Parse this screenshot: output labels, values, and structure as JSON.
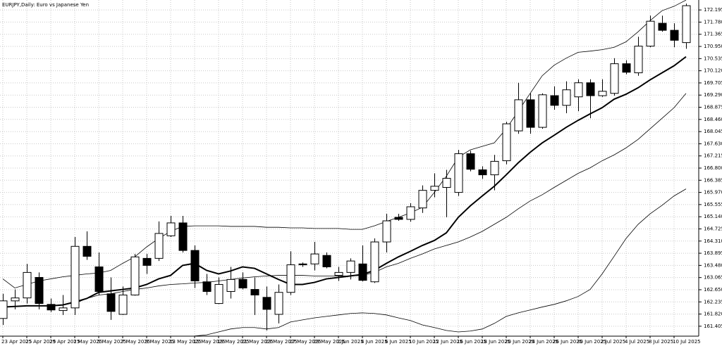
{
  "chart_data": {
    "type": "candlestick",
    "title": "EURJPY,Daily: Euro vs Japanese Yen",
    "categories": [
      "23 Apr 2025",
      null,
      "25 Apr 2025",
      null,
      "29 Apr 2025",
      null,
      "1 May 2025",
      null,
      "5 May 2025",
      null,
      "7 May 2025",
      null,
      "9 May 2025",
      null,
      "13 May 2025",
      null,
      "15 May 2025",
      null,
      "19 May 2025",
      null,
      "21 May 2025",
      null,
      "23 May 2025",
      null,
      "27 May 2025",
      null,
      "29 May 2025",
      null,
      "2 Jun 2025",
      null,
      "4 Jun 2025",
      null,
      "6 Jun 2025",
      null,
      "10 Jun 2025",
      null,
      "12 Jun 2025",
      null,
      "16 Jun 2025",
      null,
      "18 Jun 2025",
      null,
      "20 Jun 2025",
      null,
      "24 Jun 2025",
      null,
      "26 Jun 2025",
      null,
      "30 Jun 2025",
      null,
      "2 Jul 2025",
      null,
      "4 Jul 2025",
      null,
      "8 Jul 2025",
      null,
      "10 Jul 2025",
      null
    ],
    "open": [
      161.67,
      162.27,
      162.37,
      163.07,
      162.15,
      161.94,
      162.03,
      164.13,
      163.43,
      162.51,
      161.81,
      162.47,
      163.72,
      163.72,
      164.49,
      164.93,
      163.99,
      162.92,
      162.18,
      162.59,
      163.0,
      162.66,
      162.39,
      161.81,
      162.56,
      163.53,
      163.53,
      163.82,
      163.14,
      163.24,
      163.53,
      162.92,
      164.28,
      165.12,
      165.05,
      165.44,
      166.04,
      166.14,
      165.97,
      167.29,
      166.74,
      166.57,
      167.05,
      168.07,
      169.13,
      168.19,
      169.27,
      168.94,
      169.23,
      169.71,
      169.27,
      169.35,
      170.36,
      170.05,
      170.96,
      171.74,
      171.5,
      171.08
    ],
    "high": [
      162.51,
      162.66,
      163.53,
      163.24,
      162.35,
      162.47,
      164.45,
      164.64,
      163.92,
      163.07,
      162.76,
      163.87,
      163.87,
      164.98,
      165.17,
      165.17,
      164.16,
      163.19,
      163.07,
      163.43,
      163.24,
      163.07,
      162.76,
      162.83,
      163.96,
      163.58,
      164.28,
      163.92,
      163.43,
      163.72,
      164.16,
      164.4,
      165.24,
      165.24,
      165.6,
      166.21,
      166.62,
      166.74,
      167.42,
      167.39,
      166.86,
      167.25,
      168.38,
      169.71,
      169.35,
      169.35,
      169.59,
      169.76,
      169.83,
      169.83,
      169.83,
      170.55,
      170.48,
      171.28,
      172.0,
      172.0,
      171.74,
      172.41
    ],
    "low": [
      161.45,
      161.98,
      162.18,
      161.98,
      161.89,
      161.79,
      161.79,
      163.67,
      162.47,
      161.62,
      161.79,
      162.45,
      163.19,
      163.63,
      164.45,
      163.92,
      162.71,
      162.47,
      162.16,
      162.35,
      162.66,
      161.79,
      161.26,
      161.5,
      162.47,
      163.43,
      163.31,
      163.38,
      162.95,
      163.0,
      162.93,
      162.88,
      163.92,
      165.0,
      164.97,
      165.27,
      165.8,
      165.12,
      165.85,
      166.69,
      166.43,
      166.04,
      166.93,
      167.97,
      167.97,
      168.14,
      168.79,
      168.67,
      168.74,
      168.5,
      169.23,
      169.27,
      170.0,
      169.95,
      170.92,
      171.45,
      170.92,
      170.87
    ],
    "close": [
      162.27,
      162.37,
      163.24,
      162.18,
      161.96,
      162.03,
      164.13,
      163.79,
      162.59,
      161.91,
      162.47,
      163.77,
      163.48,
      164.57,
      164.93,
      163.99,
      162.95,
      162.59,
      162.83,
      163.0,
      162.71,
      162.47,
      161.98,
      162.56,
      163.5,
      163.5,
      163.87,
      163.43,
      163.24,
      163.63,
      162.97,
      164.28,
      165.0,
      165.05,
      165.48,
      166.04,
      166.18,
      166.45,
      167.29,
      166.76,
      166.57,
      167.03,
      168.31,
      169.13,
      168.19,
      169.3,
      168.94,
      169.47,
      169.71,
      169.27,
      169.42,
      170.36,
      170.07,
      170.96,
      171.81,
      171.5,
      171.16,
      172.34
    ],
    "up_color": "#ffffff",
    "down_color": "#000000",
    "candle_outline": "#000000",
    "indicators": [
      {
        "color": "#000000",
        "line_width": 2,
        "values": [
          162.06,
          162.08,
          162.1,
          162.1,
          162.1,
          162.13,
          162.23,
          162.35,
          162.56,
          162.61,
          162.66,
          162.71,
          162.83,
          163.02,
          163.14,
          163.48,
          163.55,
          163.31,
          163.19,
          163.29,
          163.43,
          163.38,
          163.19,
          163.0,
          162.83,
          162.83,
          162.9,
          163.02,
          163.07,
          163.12,
          163.17,
          163.31,
          163.55,
          163.77,
          163.96,
          164.16,
          164.33,
          164.59,
          165.12,
          165.51,
          165.85,
          166.18,
          166.57,
          166.98,
          167.34,
          167.66,
          167.92,
          168.19,
          168.43,
          168.65,
          168.86,
          169.15,
          169.32,
          169.54,
          169.81,
          170.05,
          170.29,
          170.6
        ]
      },
      {
        "color": "#000000",
        "line_width": 0.8,
        "values": [
          163.02,
          162.71,
          162.83,
          162.95,
          163.02,
          163.09,
          163.14,
          163.19,
          163.22,
          163.31,
          163.55,
          163.77,
          164.11,
          164.4,
          164.64,
          164.81,
          164.83,
          164.83,
          164.83,
          164.81,
          164.81,
          164.81,
          164.78,
          164.78,
          164.76,
          164.76,
          164.74,
          164.74,
          164.74,
          164.71,
          164.71,
          164.83,
          164.98,
          165.12,
          165.27,
          165.46,
          165.97,
          166.52,
          167.17,
          167.42,
          167.54,
          167.66,
          168.14,
          168.74,
          169.35,
          169.95,
          170.31,
          170.55,
          170.75,
          170.79,
          170.84,
          170.92,
          171.11,
          171.45,
          171.83,
          172.17,
          172.32,
          172.53
        ]
      },
      {
        "color": "#000000",
        "line_width": 0.8,
        "values": [
          null,
          null,
          null,
          null,
          null,
          null,
          162.18,
          162.35,
          162.47,
          162.51,
          162.59,
          162.66,
          162.71,
          162.78,
          162.83,
          162.85,
          162.88,
          162.9,
          162.95,
          163.0,
          163.05,
          163.09,
          163.12,
          163.14,
          163.14,
          163.14,
          163.12,
          163.12,
          163.12,
          163.12,
          163.14,
          163.24,
          163.43,
          163.55,
          163.72,
          163.87,
          164.04,
          164.16,
          164.28,
          164.45,
          164.64,
          164.88,
          165.12,
          165.41,
          165.68,
          165.89,
          166.14,
          166.38,
          166.62,
          166.81,
          167.05,
          167.25,
          167.49,
          167.78,
          168.14,
          168.5,
          168.86,
          169.35
        ]
      },
      {
        "color": "#000000",
        "line_width": 0.8,
        "values": [
          null,
          null,
          null,
          null,
          null,
          null,
          null,
          null,
          null,
          null,
          null,
          null,
          null,
          null,
          null,
          null,
          161.07,
          161.11,
          161.21,
          161.31,
          161.36,
          161.36,
          161.31,
          161.36,
          161.55,
          161.62,
          161.69,
          161.74,
          161.79,
          161.84,
          161.86,
          161.84,
          161.79,
          161.69,
          161.6,
          161.45,
          161.36,
          161.26,
          161.21,
          161.24,
          161.31,
          161.5,
          161.74,
          161.86,
          161.96,
          162.06,
          162.15,
          162.27,
          162.42,
          162.66,
          163.19,
          163.79,
          164.4,
          164.88,
          165.24,
          165.53,
          165.85,
          166.09
        ]
      }
    ],
    "ylim": [
      161.066,
      172.534
    ],
    "yticks": [
      172.195,
      {
        "value": 171.78,
        "label": "171.780"
      },
      171.365,
      {
        "value": 170.95,
        "label": "170.950"
      },
      170.535,
      {
        "value": 170.12,
        "label": "170.120"
      },
      169.705,
      {
        "value": 169.29,
        "label": "169.290"
      },
      168.875,
      {
        "value": 168.46,
        "label": "168.460"
      },
      168.045,
      {
        "value": 167.63,
        "label": "167.630"
      },
      167.215,
      {
        "value": 166.8,
        "label": "166.800"
      },
      166.385,
      {
        "value": 165.97,
        "label": "165.970"
      },
      165.555,
      {
        "value": 165.14,
        "label": "165.140"
      },
      164.725,
      {
        "value": 164.31,
        "label": "164.310"
      },
      163.895,
      {
        "value": 163.48,
        "label": "163.480"
      },
      163.065,
      {
        "value": 162.65,
        "label": "162.650"
      },
      162.235,
      {
        "value": 161.82,
        "label": "161.820"
      },
      161.405
    ],
    "grid": true,
    "grid_color": "#c8c8c8"
  }
}
